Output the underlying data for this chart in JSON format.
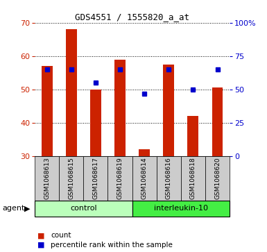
{
  "title": "GDS4551 / 1555820_a_at",
  "samples": [
    "GSM1068613",
    "GSM1068615",
    "GSM1068617",
    "GSM1068619",
    "GSM1068614",
    "GSM1068616",
    "GSM1068618",
    "GSM1068620"
  ],
  "count_values": [
    57.0,
    68.0,
    50.0,
    59.0,
    32.0,
    57.5,
    42.0,
    50.5
  ],
  "percentile_values": [
    65,
    65,
    55,
    65,
    47,
    65,
    50,
    65
  ],
  "bar_color": "#cc2200",
  "dot_color": "#0000cc",
  "left_ylim": [
    30,
    70
  ],
  "right_ylim": [
    0,
    100
  ],
  "left_yticks": [
    30,
    40,
    50,
    60,
    70
  ],
  "right_yticks": [
    0,
    25,
    50,
    75,
    100
  ],
  "right_yticklabels": [
    "0",
    "25",
    "50",
    "75",
    "100%"
  ],
  "left_ycolor": "#cc2200",
  "right_ycolor": "#0000cc",
  "control_label": "control",
  "interleukin_label": "interleukin-10",
  "agent_label": "agent",
  "legend_count": "count",
  "legend_percentile": "percentile rank within the sample",
  "control_bg": "#bbffbb",
  "interleukin_bg": "#44ee44",
  "sample_bg": "#cccccc",
  "bar_width": 0.45,
  "bar_bottom": 30,
  "fig_w": 3.85,
  "fig_h": 3.63,
  "dpi": 100
}
